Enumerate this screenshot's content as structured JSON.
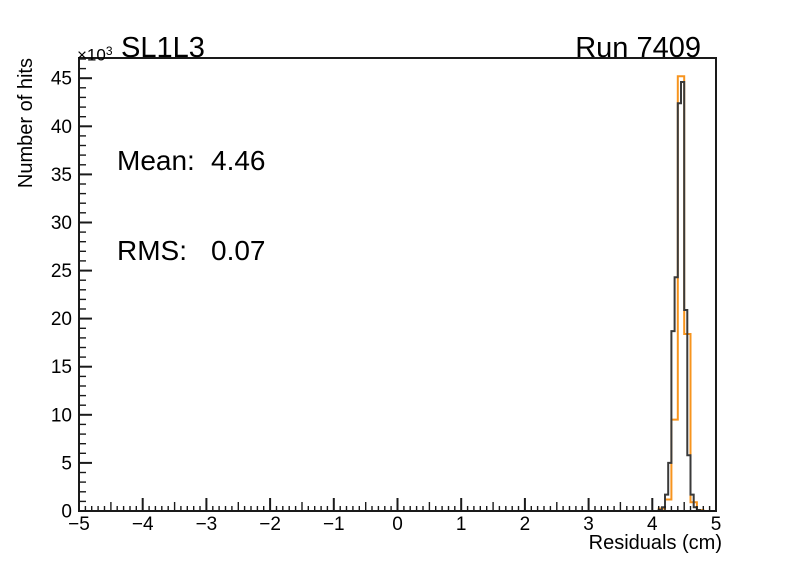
{
  "colors": {
    "background": "#ffffff",
    "axis": "#1a1a1a",
    "text": "#000000",
    "hist_orange": "#f7941e",
    "hist_dark": "#3a3a3a"
  },
  "chart_data": {
    "type": "histogram",
    "title": "SL1L3",
    "corner_annotation": "Run 7409",
    "xlabel": "Residuals (cm)",
    "ylabel": "Number of hits",
    "y_axis_exponent": {
      "base": "×10",
      "power": "3"
    },
    "stats_box": {
      "mean_label": "Mean:",
      "mean_value": "4.46",
      "rms_label": "RMS:",
      "rms_value": "0.07"
    },
    "xlim": [
      -5,
      5
    ],
    "ylim": [
      0,
      47100
    ],
    "grid": false,
    "legend": null,
    "x_major_ticks": [
      -5,
      -4,
      -3,
      -2,
      -1,
      0,
      1,
      2,
      3,
      4,
      5
    ],
    "x_tick_labels": [
      "−5",
      "−4",
      "−3",
      "−2",
      "−1",
      "0",
      "1",
      "2",
      "3",
      "4",
      "5"
    ],
    "x_minor_step": 0.1,
    "x_medium_step": 0.5,
    "y_major_ticks": [
      0,
      5000,
      10000,
      15000,
      20000,
      25000,
      30000,
      35000,
      40000,
      45000
    ],
    "y_tick_labels": [
      "0",
      "5",
      "10",
      "15",
      "20",
      "25",
      "30",
      "35",
      "40",
      "45"
    ],
    "y_minor_step": 1000,
    "bins_format": [
      "x_low",
      "x_high",
      "count"
    ],
    "series": [
      {
        "name": "residuals-histogram-orange",
        "color": "#f7941e",
        "line_width": 2,
        "bin_width": 0.1,
        "bins": [
          [
            4.1,
            4.2,
            250
          ],
          [
            4.2,
            4.3,
            1200
          ],
          [
            4.3,
            4.4,
            9500
          ],
          [
            4.4,
            4.5,
            45200
          ],
          [
            4.5,
            4.6,
            18400
          ],
          [
            4.6,
            4.7,
            900
          ],
          [
            4.7,
            4.8,
            100
          ]
        ]
      },
      {
        "name": "residuals-histogram-dark",
        "color": "#3a3a3a",
        "line_width": 2,
        "bin_width": 0.05,
        "bins": [
          [
            4.1,
            4.15,
            100
          ],
          [
            4.15,
            4.2,
            400
          ],
          [
            4.2,
            4.25,
            1700
          ],
          [
            4.25,
            4.3,
            5000
          ],
          [
            4.3,
            4.35,
            18700
          ],
          [
            4.35,
            4.4,
            24300
          ],
          [
            4.4,
            4.45,
            42400
          ],
          [
            4.45,
            4.5,
            44600
          ],
          [
            4.5,
            4.55,
            20900
          ],
          [
            4.55,
            4.6,
            5800
          ],
          [
            4.6,
            4.65,
            1700
          ],
          [
            4.65,
            4.7,
            400
          ],
          [
            4.7,
            4.75,
            100
          ]
        ]
      }
    ]
  }
}
